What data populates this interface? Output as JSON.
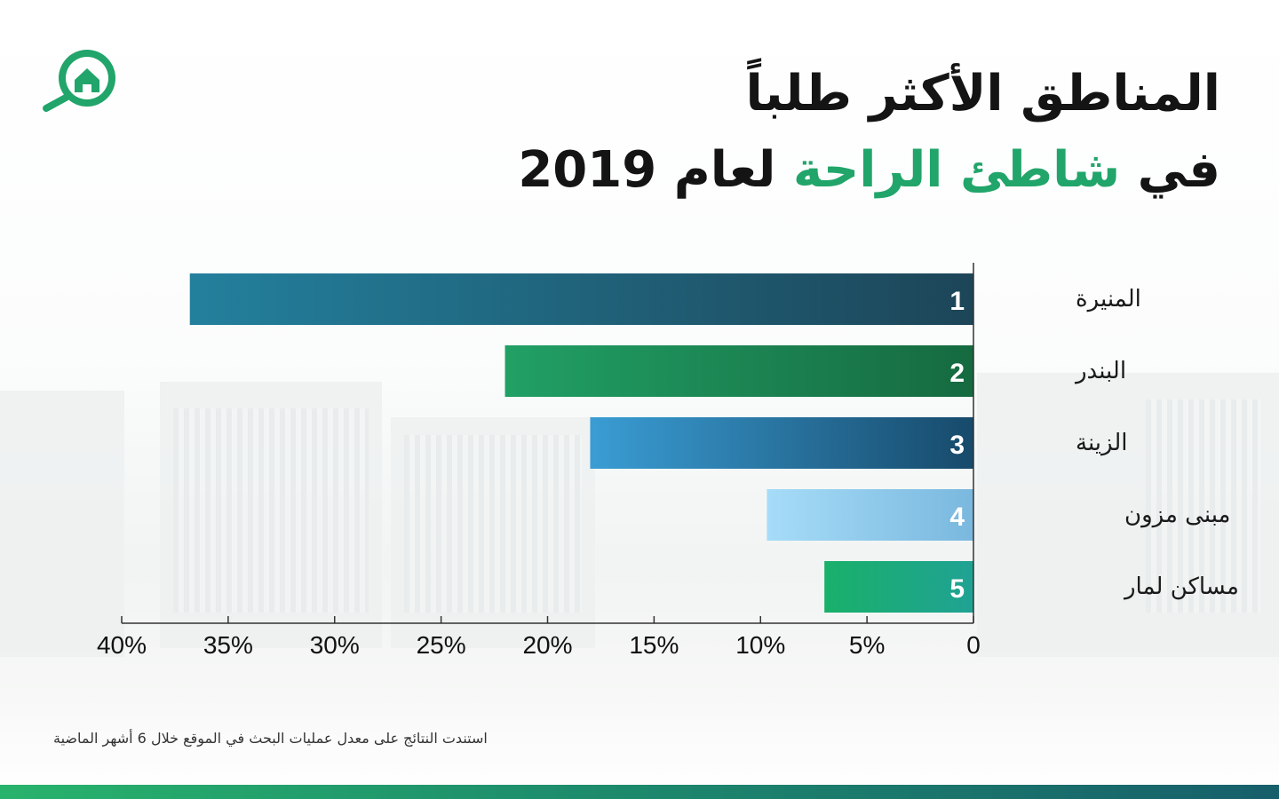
{
  "header": {
    "title_line1": "المناطق الأكثر طلباً",
    "title_line2_prefix": "في",
    "title_line2_highlight": "شاطئ الراحة",
    "title_line2_suffix": "لعام",
    "title_year": "2019"
  },
  "footnote": "استندت النتائج على معدل عمليات البحث في الموقع خلال 6 أشهر الماضية",
  "logo_icon": "house-search-icon",
  "colors": {
    "accent_green": "#21a56a",
    "bottom_bar_start": "#28b36c",
    "bottom_bar_end": "#175f6b"
  },
  "chart_data": {
    "type": "bar",
    "orientation": "horizontal",
    "categories": [
      "المنيرة",
      "البندر",
      "الزينة",
      "مبنى مزون",
      "مساكن لمار"
    ],
    "ranks": [
      "1",
      "2",
      "3",
      "4",
      "5"
    ],
    "values": [
      36.8,
      22.0,
      18.0,
      9.7,
      7.0
    ],
    "unit": "%",
    "xlim": [
      0,
      40
    ],
    "x_ticks": [
      0,
      5,
      10,
      15,
      20,
      25,
      30,
      35,
      40
    ],
    "x_tick_labels": [
      "0",
      "5%",
      "10%",
      "15%",
      "20%",
      "25%",
      "30%",
      "35%",
      "40%"
    ],
    "x_direction": "right-to-left",
    "grid": false,
    "bar_gradients": [
      [
        "#23809d",
        "#1d4558"
      ],
      [
        "#21a065",
        "#166a40"
      ],
      [
        "#3a9dd4",
        "#174a6b"
      ],
      [
        "#a6dcf8",
        "#7ab8de"
      ],
      [
        "#19b06a",
        "#20a294"
      ]
    ]
  }
}
